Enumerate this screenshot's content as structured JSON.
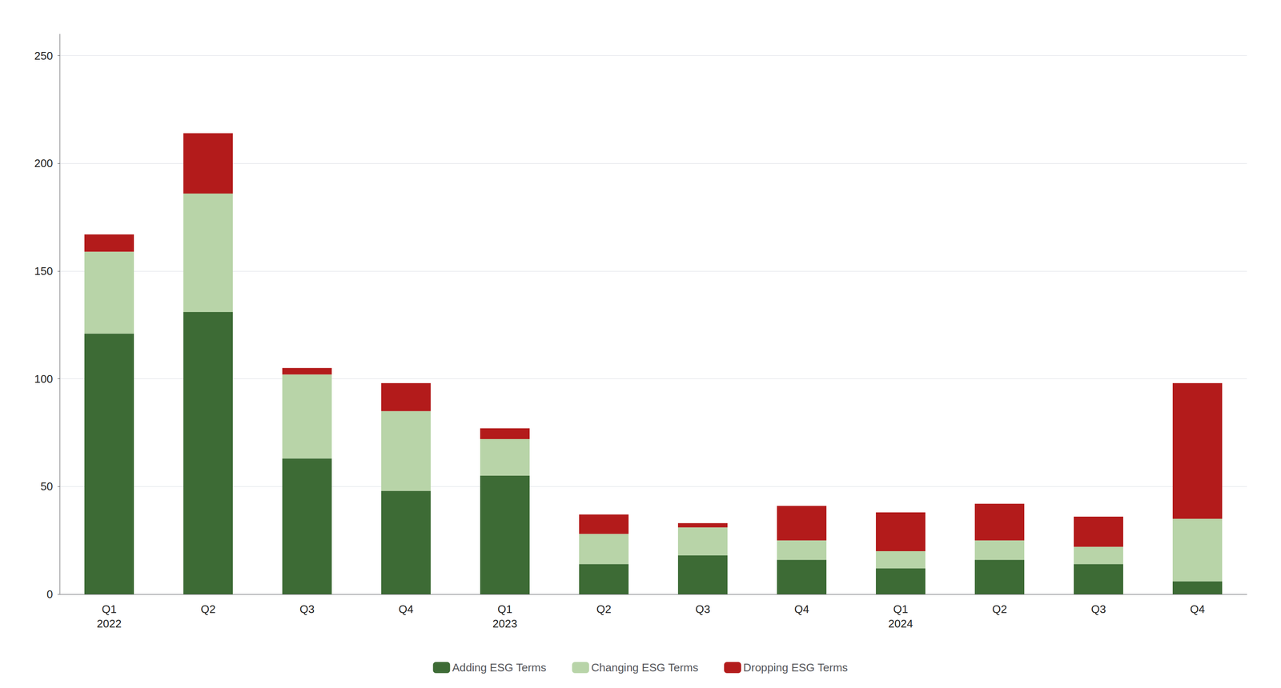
{
  "chart_data": {
    "type": "bar",
    "stacked": true,
    "categories": [
      "Q1\n2022",
      "Q2",
      "Q3",
      "Q4",
      "Q1\n2023",
      "Q2",
      "Q3",
      "Q4",
      "Q1\n2024",
      "Q2",
      "Q3",
      "Q4"
    ],
    "series": [
      {
        "name": "Adding ESG Terms",
        "color": "#3d6b35",
        "values": [
          121,
          131,
          63,
          48,
          55,
          14,
          18,
          16,
          12,
          16,
          14,
          6
        ]
      },
      {
        "name": "Changing ESG Terms",
        "color": "#b8d4a8",
        "values": [
          38,
          55,
          39,
          37,
          17,
          14,
          13,
          9,
          8,
          9,
          8,
          29
        ]
      },
      {
        "name": "Dropping ESG Terms",
        "color": "#b31b1b",
        "values": [
          8,
          28,
          3,
          13,
          5,
          9,
          2,
          16,
          18,
          17,
          14,
          63
        ]
      }
    ],
    "ylim": [
      0,
      260
    ],
    "yticks": [
      0,
      50,
      100,
      150,
      200,
      250
    ],
    "grid": true,
    "legend": "bottom"
  }
}
